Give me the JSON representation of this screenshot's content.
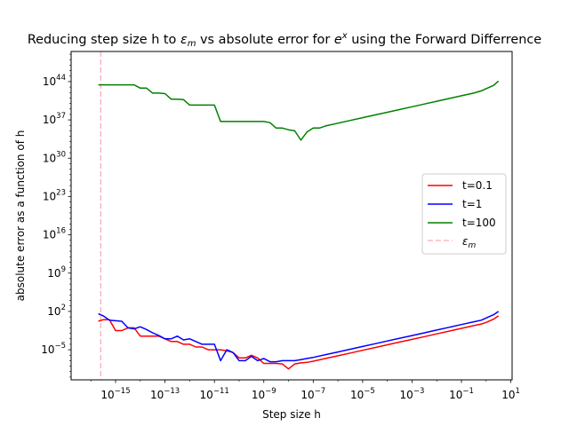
{
  "chart_data": {
    "type": "line",
    "title": {
      "prefix": "Reducing step size h to ",
      "eps_sym": "ε",
      "eps_sub": "m",
      "middle": " vs absolute error for ",
      "base": "e",
      "sup": "x",
      "suffix": " using the Forward Differrence"
    },
    "xlabel": "Step size h",
    "ylabel": "absolute error as a function of h",
    "xscale": "log",
    "yscale": "log",
    "xlim_exp": [
      -16.8,
      1.05
    ],
    "ylim_exp": [
      -10.5,
      49.5
    ],
    "xticks_exp": [
      -15,
      -13,
      -11,
      -9,
      -7,
      -5,
      -3,
      -1,
      1
    ],
    "yticks_exp": [
      -5,
      2,
      9,
      16,
      23,
      30,
      37,
      44
    ],
    "tick_base": "10",
    "grid": false,
    "legend_position": "center-right",
    "eps_m_exp": -15.6,
    "series": [
      {
        "name": "t=0.1",
        "color": "#ff0000",
        "log10_h": [
          -15.7,
          -15.5,
          -15.25,
          -15.0,
          -14.75,
          -14.5,
          -14.25,
          -14.0,
          -13.75,
          -13.5,
          -13.25,
          -13.0,
          -12.75,
          -12.5,
          -12.25,
          -12.0,
          -11.75,
          -11.5,
          -11.25,
          -11.0,
          -10.75,
          -10.5,
          -10.25,
          -10.0,
          -9.75,
          -9.5,
          -9.25,
          -9.0,
          -8.75,
          -8.5,
          -8.25,
          -8.0,
          -7.75,
          -7.5,
          -7.25,
          -7.0,
          -6.5,
          -6.0,
          -5.5,
          -5.0,
          -4.5,
          -4.0,
          -3.5,
          -3.0,
          -2.5,
          -2.0,
          -1.5,
          -1.0,
          -0.5,
          -0.2,
          0.0,
          0.3,
          0.5
        ],
        "log10_err": [
          0.2,
          0.5,
          0.5,
          -1.5,
          -1.5,
          -1.0,
          -1.0,
          -2.5,
          -2.5,
          -2.5,
          -2.5,
          -3.0,
          -3.5,
          -3.5,
          -4.0,
          -4.0,
          -4.5,
          -4.5,
          -5.0,
          -5.0,
          -5.0,
          -5.2,
          -5.5,
          -6.5,
          -6.5,
          -6.0,
          -6.5,
          -7.5,
          -7.5,
          -7.5,
          -7.6,
          -8.5,
          -7.6,
          -7.4,
          -7.3,
          -7.1,
          -6.6,
          -6.1,
          -5.6,
          -5.1,
          -4.6,
          -4.1,
          -3.6,
          -3.1,
          -2.6,
          -2.1,
          -1.6,
          -1.1,
          -0.6,
          -0.3,
          0.0,
          0.6,
          1.2
        ]
      },
      {
        "name": "t=1",
        "color": "#0000ff",
        "log10_h": [
          -15.7,
          -15.5,
          -15.25,
          -15.0,
          -14.75,
          -14.5,
          -14.25,
          -14.0,
          -13.75,
          -13.5,
          -13.25,
          -13.0,
          -12.75,
          -12.5,
          -12.25,
          -12.0,
          -11.75,
          -11.5,
          -11.25,
          -11.0,
          -10.75,
          -10.5,
          -10.25,
          -10.0,
          -9.75,
          -9.5,
          -9.25,
          -9.0,
          -8.75,
          -8.5,
          -8.25,
          -8.0,
          -7.75,
          -7.5,
          -7.25,
          -7.0,
          -6.5,
          -6.0,
          -5.5,
          -5.0,
          -4.5,
          -4.0,
          -3.5,
          -3.0,
          -2.5,
          -2.0,
          -1.5,
          -1.0,
          -0.5,
          -0.2,
          0.0,
          0.3,
          0.5
        ],
        "log10_err": [
          1.6,
          1.2,
          0.4,
          0.3,
          0.2,
          -1.0,
          -1.2,
          -0.8,
          -1.3,
          -1.9,
          -2.4,
          -3.0,
          -3.0,
          -2.5,
          -3.2,
          -3.0,
          -3.5,
          -4.0,
          -4.0,
          -4.0,
          -7.0,
          -5.0,
          -5.5,
          -7.0,
          -7.0,
          -6.2,
          -7.0,
          -6.6,
          -7.2,
          -7.2,
          -7.0,
          -7.0,
          -7.0,
          -6.8,
          -6.6,
          -6.4,
          -5.9,
          -5.4,
          -4.9,
          -4.4,
          -3.9,
          -3.4,
          -2.9,
          -2.4,
          -1.9,
          -1.4,
          -0.9,
          -0.4,
          0.1,
          0.4,
          0.8,
          1.4,
          2.0
        ]
      },
      {
        "name": "t=100",
        "color": "#008000",
        "log10_h": [
          -15.7,
          -15.5,
          -15.0,
          -14.5,
          -14.25,
          -14.0,
          -13.75,
          -13.5,
          -13.25,
          -13.0,
          -12.75,
          -12.5,
          -12.25,
          -12.0,
          -11.5,
          -11.25,
          -11.0,
          -10.75,
          -10.5,
          -10.0,
          -9.5,
          -9.25,
          -9.0,
          -8.75,
          -8.5,
          -8.25,
          -8.0,
          -7.75,
          -7.5,
          -7.25,
          -7.0,
          -6.75,
          -6.5,
          -6.0,
          -5.5,
          -5.0,
          -4.5,
          -4.0,
          -3.5,
          -3.0,
          -2.5,
          -2.0,
          -1.5,
          -1.0,
          -0.5,
          -0.2,
          0.0,
          0.3,
          0.5
        ],
        "log10_err": [
          43.4,
          43.4,
          43.4,
          43.4,
          43.4,
          42.8,
          42.8,
          41.9,
          41.9,
          41.8,
          40.8,
          40.8,
          40.7,
          39.7,
          39.7,
          39.7,
          39.7,
          36.7,
          36.7,
          36.7,
          36.7,
          36.7,
          36.7,
          36.5,
          35.5,
          35.5,
          35.2,
          35.0,
          33.3,
          34.8,
          35.5,
          35.5,
          35.9,
          36.4,
          36.9,
          37.4,
          37.9,
          38.4,
          38.9,
          39.4,
          39.9,
          40.4,
          40.9,
          41.4,
          41.9,
          42.3,
          42.7,
          43.3,
          44.1
        ]
      },
      {
        "name": "εm",
        "name_sym": "ε",
        "name_sub": "m",
        "color": "#ffb6c1",
        "style": "dashed"
      }
    ]
  }
}
